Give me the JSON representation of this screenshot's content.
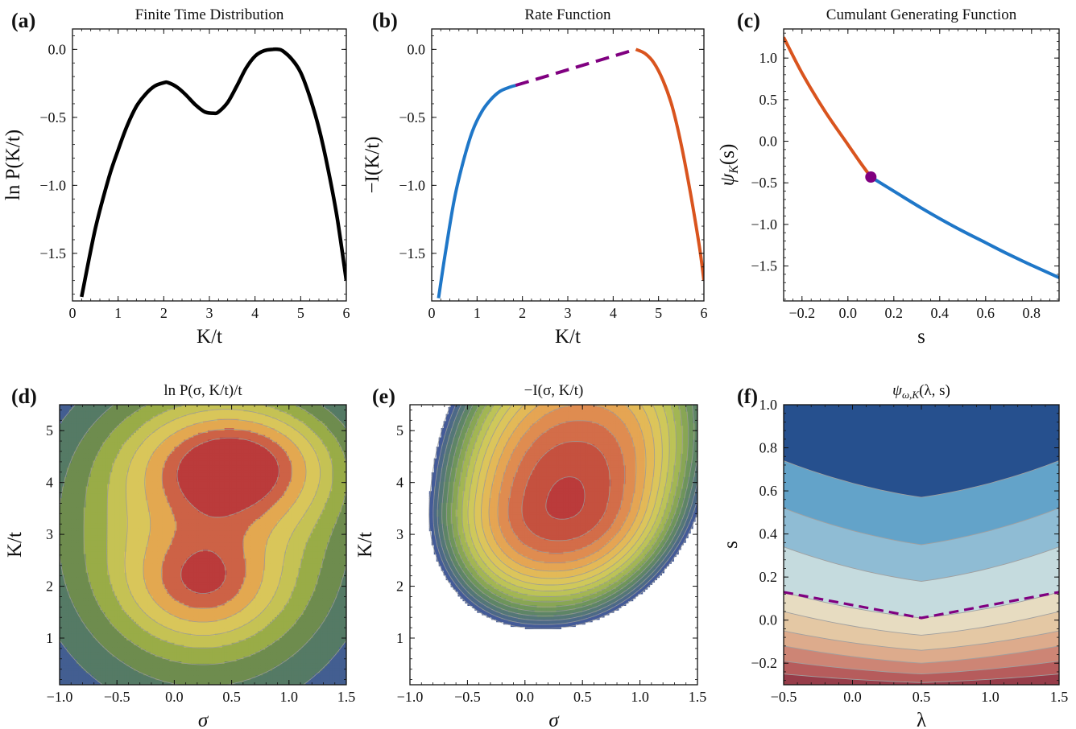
{
  "chart_data": [
    {
      "id": "a",
      "type": "line",
      "panel_label": "(a)",
      "title": "Finite Time Distribution",
      "xlabel": "K/t",
      "ylabel": "ln P(K/t)",
      "xlim": [
        0,
        6
      ],
      "ylim": [
        -1.85,
        0.15
      ],
      "xticks": [
        "0",
        "1",
        "2",
        "3",
        "4",
        "5",
        "6"
      ],
      "yticks": [
        "0.0",
        "−0.5",
        "−1.0",
        "−1.5"
      ],
      "series": [
        {
          "color": "#000000",
          "style": "solid",
          "x": [
            0.2,
            0.5,
            0.8,
            1.0,
            1.2,
            1.4,
            1.6,
            1.8,
            2.0,
            2.1,
            2.3,
            2.5,
            2.7,
            2.9,
            3.1,
            3.2,
            3.4,
            3.6,
            3.8,
            4.0,
            4.2,
            4.4,
            4.5,
            4.6,
            4.8,
            5.0,
            5.2,
            5.4,
            5.6,
            5.8,
            6.0
          ],
          "y": [
            -1.82,
            -1.32,
            -0.94,
            -0.74,
            -0.56,
            -0.42,
            -0.33,
            -0.27,
            -0.245,
            -0.245,
            -0.28,
            -0.34,
            -0.41,
            -0.46,
            -0.47,
            -0.46,
            -0.39,
            -0.27,
            -0.14,
            -0.05,
            -0.01,
            0.0,
            0.0,
            -0.01,
            -0.07,
            -0.17,
            -0.35,
            -0.58,
            -0.88,
            -1.24,
            -1.7
          ]
        }
      ]
    },
    {
      "id": "b",
      "type": "line",
      "panel_label": "(b)",
      "title": "Rate Function",
      "xlabel": "K/t",
      "ylabel": "−I(K/t)",
      "xlim": [
        0,
        6
      ],
      "ylim": [
        -1.85,
        0.15
      ],
      "xticks": [
        "0",
        "1",
        "2",
        "3",
        "4",
        "5",
        "6"
      ],
      "yticks": [
        "0.0",
        "−0.5",
        "−1.0",
        "−1.5"
      ],
      "series": [
        {
          "color": "#1f77c8",
          "style": "solid",
          "x": [
            0.15,
            0.3,
            0.5,
            0.7,
            0.9,
            1.1,
            1.3,
            1.5,
            1.7,
            1.85
          ],
          "y": [
            -1.83,
            -1.5,
            -1.1,
            -0.82,
            -0.6,
            -0.46,
            -0.37,
            -0.31,
            -0.28,
            -0.265
          ]
        },
        {
          "color": "#800080",
          "style": "dashed",
          "x": [
            1.85,
            4.5
          ],
          "y": [
            -0.265,
            0.0
          ]
        },
        {
          "color": "#d9541e",
          "style": "solid",
          "x": [
            4.5,
            4.7,
            4.9,
            5.1,
            5.3,
            5.5,
            5.7,
            5.9,
            6.0
          ],
          "y": [
            0.0,
            -0.03,
            -0.1,
            -0.23,
            -0.42,
            -0.7,
            -1.05,
            -1.45,
            -1.7
          ]
        }
      ]
    },
    {
      "id": "c",
      "type": "line",
      "panel_label": "(c)",
      "title": "Cumulant Generating Function",
      "xlabel": "s",
      "ylabel": "ψK(s)",
      "ylabel_main": "ψ",
      "ylabel_sub": "K",
      "ylabel_rest": "(s)",
      "xlim": [
        -0.28,
        0.92
      ],
      "ylim": [
        -1.92,
        1.35
      ],
      "xticks": [
        "−0.2",
        "0.0",
        "0.2",
        "0.4",
        "0.6",
        "0.8"
      ],
      "yticks": [
        "1.0",
        "0.5",
        "0.0",
        "−0.5",
        "−1.0",
        "−1.5"
      ],
      "series": [
        {
          "color": "#d9541e",
          "style": "solid",
          "x": [
            -0.28,
            -0.2,
            -0.1,
            0.0,
            0.05,
            0.1
          ],
          "y": [
            1.25,
            0.82,
            0.36,
            -0.04,
            -0.24,
            -0.43
          ]
        },
        {
          "color": "#1f77c8",
          "style": "solid",
          "x": [
            0.1,
            0.2,
            0.3,
            0.4,
            0.5,
            0.6,
            0.7,
            0.8,
            0.92
          ],
          "y": [
            -0.43,
            -0.6,
            -0.77,
            -0.93,
            -1.08,
            -1.22,
            -1.36,
            -1.49,
            -1.64
          ]
        }
      ],
      "points": [
        {
          "x": 0.1,
          "y": -0.43,
          "color": "#800080"
        }
      ]
    },
    {
      "id": "d",
      "type": "heatmap",
      "panel_label": "(d)",
      "title": "ln P(σ, K/t)/t",
      "xlabel": "σ",
      "ylabel": "K/t",
      "xlim": [
        -1.0,
        1.5
      ],
      "ylim": [
        0.1,
        5.5
      ],
      "xticks": [
        "−1.0",
        "−0.5",
        "0.0",
        "0.5",
        "1.0",
        "1.5"
      ],
      "yticks": [
        "1",
        "2",
        "3",
        "4",
        "5"
      ],
      "levels": [
        -0.15,
        -0.28,
        -0.45,
        -0.65,
        -0.85,
        -1.1,
        -1.4,
        -1.8,
        -2.3
      ],
      "colors": [
        "#bb3b3b",
        "#cd6246",
        "#e3a850",
        "#d9c65a",
        "#c5c254",
        "#99ac47",
        "#6e8c4e",
        "#557a65",
        "#435e91"
      ]
    },
    {
      "id": "e",
      "type": "heatmap",
      "panel_label": "(e)",
      "title": "−I(σ, K/t)",
      "xlabel": "σ",
      "ylabel": "K/t",
      "xlim": [
        -1.0,
        1.5
      ],
      "ylim": [
        0.1,
        5.5
      ],
      "xticks": [
        "−1.0",
        "−0.5",
        "0.0",
        "0.5",
        "1.0",
        "1.5"
      ],
      "yticks": [
        "1",
        "2",
        "3",
        "4",
        "5"
      ],
      "levels": [
        -0.25,
        -0.5,
        -0.75,
        -1.0,
        -1.25,
        -1.5,
        -1.75,
        -2.0,
        -2.25,
        -2.5,
        -2.75,
        -3.0,
        -3.25,
        -3.5,
        -3.75,
        -4.0
      ],
      "colors": [
        "#bb3b3b",
        "#c5513f",
        "#d36d49",
        "#df8c50",
        "#e5a553",
        "#e3b957",
        "#dcc55b",
        "#cfc85a",
        "#bcc357",
        "#a2b653",
        "#88a654",
        "#6e955b",
        "#5e8566",
        "#547777",
        "#4c6987",
        "#445b98"
      ]
    },
    {
      "id": "f",
      "type": "heatmap",
      "panel_label": "(f)",
      "title": "ψω,K(λ, s)",
      "title_main": "ψ",
      "title_sub": "ω,K",
      "title_rest": "(λ, s)",
      "xlabel": "λ",
      "ylabel": "s",
      "xlim": [
        -0.5,
        1.5
      ],
      "ylim": [
        -0.3,
        1.0
      ],
      "xticks": [
        "−0.5",
        "0.0",
        "0.5",
        "1.0",
        "1.5"
      ],
      "yticks": [
        "1.0",
        "0.8",
        "0.6",
        "0.4",
        "0.2",
        "0.0",
        "−0.2"
      ],
      "band_boundaries_at_lambda_minus0.5_and_0.5": [
        [
          0.74,
          0.57
        ],
        [
          0.52,
          0.35
        ],
        [
          0.34,
          0.18
        ],
        [
          0.13,
          0.01
        ],
        [
          0.04,
          -0.07
        ],
        [
          -0.05,
          -0.14
        ],
        [
          -0.12,
          -0.2
        ],
        [
          -0.19,
          -0.25
        ],
        [
          -0.25,
          -0.29
        ]
      ],
      "colors": [
        "#26508e",
        "#63a3c9",
        "#8fbcd4",
        "#c5dbde",
        "#e7dcc1",
        "#e4c8a4",
        "#ddab8c",
        "#cd8575",
        "#b65c5c",
        "#973c49"
      ],
      "dashed_curve": {
        "color": "#800080",
        "lambda": [
          -0.5,
          0.5,
          1.5
        ],
        "s": [
          0.13,
          0.01,
          0.13
        ]
      }
    }
  ]
}
